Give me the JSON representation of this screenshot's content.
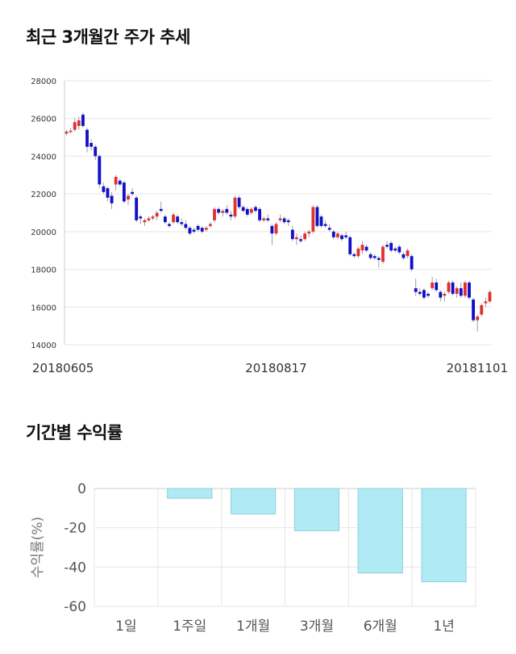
{
  "titles": {
    "price_trend": "최근 3개월간 주가 추세",
    "period_returns": "기간별 수익률"
  },
  "colors": {
    "up": "#e03030",
    "down": "#1010c8",
    "bar_fill": "#b0eaf4",
    "bar_stroke": "#8fd0dc",
    "grid": "#e6e6e6"
  },
  "chart_data": [
    {
      "type": "candlestick",
      "title": "최근 3개월간 주가 추세",
      "ylim": [
        14000,
        28000
      ],
      "yticks": [
        14000,
        16000,
        18000,
        20000,
        22000,
        24000,
        26000,
        28000
      ],
      "xtick_labels": [
        "20180605",
        "20180817",
        "20181101"
      ],
      "xtick_index": [
        0,
        51,
        103
      ],
      "n": 104,
      "candles": [
        [
          25200,
          25400,
          25100,
          25300
        ],
        [
          25300,
          25500,
          25200,
          25350
        ],
        [
          25400,
          26000,
          25300,
          25800
        ],
        [
          25600,
          26100,
          25400,
          25900
        ],
        [
          26200,
          26300,
          25500,
          25600
        ],
        [
          25400,
          25500,
          24200,
          24500
        ],
        [
          24700,
          24900,
          24300,
          24500
        ],
        [
          24500,
          24600,
          23800,
          24000
        ],
        [
          24000,
          24100,
          22300,
          22500
        ],
        [
          22400,
          22600,
          22000,
          22100
        ],
        [
          22300,
          22400,
          21600,
          21800
        ],
        [
          21900,
          22100,
          21200,
          21500
        ],
        [
          22500,
          23000,
          22200,
          22900
        ],
        [
          22700,
          22800,
          22400,
          22500
        ],
        [
          22600,
          22700,
          21500,
          21600
        ],
        [
          21700,
          22000,
          21400,
          21900
        ],
        [
          22100,
          22300,
          21900,
          22000
        ],
        [
          21800,
          21900,
          20500,
          20600
        ],
        [
          20800,
          20900,
          20400,
          20700
        ],
        [
          20500,
          20700,
          20300,
          20600
        ],
        [
          20600,
          20800,
          20500,
          20700
        ],
        [
          20700,
          20900,
          20600,
          20800
        ],
        [
          20800,
          21100,
          20600,
          21000
        ],
        [
          21200,
          21600,
          21000,
          21100
        ],
        [
          20800,
          20900,
          20400,
          20500
        ],
        [
          20400,
          20500,
          20200,
          20300
        ],
        [
          20500,
          21000,
          20400,
          20900
        ],
        [
          20800,
          20900,
          20400,
          20500
        ],
        [
          20500,
          20700,
          20300,
          20400
        ],
        [
          20400,
          20600,
          20100,
          20200
        ],
        [
          20200,
          20300,
          19800,
          19900
        ],
        [
          20100,
          20200,
          19900,
          20000
        ],
        [
          20300,
          20400,
          20000,
          20100
        ],
        [
          20200,
          20300,
          19900,
          20000
        ],
        [
          20100,
          20300,
          20000,
          20200
        ],
        [
          20300,
          20500,
          20200,
          20400
        ],
        [
          20600,
          21300,
          20500,
          21200
        ],
        [
          21200,
          21300,
          20900,
          21000
        ],
        [
          21000,
          21200,
          20800,
          21100
        ],
        [
          21200,
          21400,
          20900,
          21000
        ],
        [
          20900,
          21100,
          20600,
          20800
        ],
        [
          20800,
          21900,
          20700,
          21800
        ],
        [
          21800,
          21900,
          21200,
          21300
        ],
        [
          21300,
          21400,
          21000,
          21100
        ],
        [
          21200,
          21300,
          20800,
          20900
        ],
        [
          21000,
          21300,
          20900,
          21200
        ],
        [
          21300,
          21400,
          21000,
          21100
        ],
        [
          21200,
          21300,
          20500,
          20600
        ],
        [
          20600,
          20800,
          20500,
          20700
        ],
        [
          20700,
          20900,
          20500,
          20600
        ],
        [
          20300,
          20400,
          19300,
          19900
        ],
        [
          19900,
          20500,
          19800,
          20400
        ],
        [
          20600,
          20900,
          20500,
          20700
        ],
        [
          20700,
          20800,
          20400,
          20500
        ],
        [
          20600,
          20700,
          20300,
          20500
        ],
        [
          20100,
          20300,
          19500,
          19600
        ],
        [
          19600,
          19900,
          19300,
          19700
        ],
        [
          19600,
          19800,
          19400,
          19500
        ],
        [
          19600,
          20000,
          19500,
          19900
        ],
        [
          19900,
          20100,
          19700,
          20000
        ],
        [
          20000,
          21400,
          19900,
          21300
        ],
        [
          21300,
          21400,
          20200,
          20300
        ],
        [
          20800,
          20900,
          20200,
          20300
        ],
        [
          20400,
          20600,
          20200,
          20300
        ],
        [
          20200,
          20400,
          20000,
          20100
        ],
        [
          20000,
          20100,
          19600,
          19700
        ],
        [
          19700,
          20000,
          19600,
          19900
        ],
        [
          19800,
          19900,
          19500,
          19600
        ],
        [
          19800,
          20000,
          19600,
          19700
        ],
        [
          19700,
          19800,
          18700,
          18800
        ],
        [
          18800,
          18900,
          18600,
          18700
        ],
        [
          18700,
          19200,
          18600,
          19100
        ],
        [
          19000,
          19500,
          18800,
          19300
        ],
        [
          19200,
          19300,
          18900,
          19000
        ],
        [
          18800,
          18900,
          18500,
          18600
        ],
        [
          18700,
          18800,
          18500,
          18600
        ],
        [
          18600,
          18700,
          18100,
          18500
        ],
        [
          18400,
          19300,
          18300,
          19200
        ],
        [
          19300,
          19500,
          19100,
          19200
        ],
        [
          19400,
          19500,
          18900,
          19000
        ],
        [
          19100,
          19200,
          18900,
          19000
        ],
        [
          19200,
          19300,
          18800,
          18900
        ],
        [
          18800,
          18900,
          18500,
          18600
        ],
        [
          18700,
          19100,
          18600,
          19000
        ],
        [
          18700,
          18800,
          17900,
          18000
        ],
        [
          17000,
          17500,
          16600,
          16800
        ],
        [
          16800,
          17000,
          16600,
          16700
        ],
        [
          16900,
          17000,
          16400,
          16500
        ],
        [
          16700,
          16800,
          16500,
          16600
        ],
        [
          17000,
          17600,
          16900,
          17300
        ],
        [
          17300,
          17500,
          16800,
          16900
        ],
        [
          16800,
          16900,
          16300,
          16500
        ],
        [
          16600,
          16800,
          16300,
          16700
        ],
        [
          16800,
          17400,
          16700,
          17300
        ],
        [
          17300,
          17400,
          16600,
          16700
        ],
        [
          16700,
          17100,
          16500,
          17000
        ],
        [
          17000,
          17300,
          16500,
          16600
        ],
        [
          16600,
          17400,
          16500,
          17300
        ],
        [
          17300,
          17400,
          16400,
          16500
        ],
        [
          16400,
          16500,
          15200,
          15300
        ],
        [
          15300,
          15600,
          14700,
          15500
        ],
        [
          15600,
          16200,
          15500,
          16100
        ],
        [
          16200,
          16500,
          16000,
          16300
        ],
        [
          16300,
          16900,
          16200,
          16800
        ]
      ]
    },
    {
      "type": "bar",
      "title": "기간별 수익률",
      "ylabel": "수익률(%)",
      "ylim": [
        -60,
        0
      ],
      "yticks": [
        0,
        -20,
        -40,
        -60
      ],
      "categories": [
        "1일",
        "1주일",
        "1개월",
        "3개월",
        "6개월",
        "1년"
      ],
      "values": [
        0,
        -5,
        -13,
        -21.5,
        -43,
        -47.5
      ]
    }
  ]
}
